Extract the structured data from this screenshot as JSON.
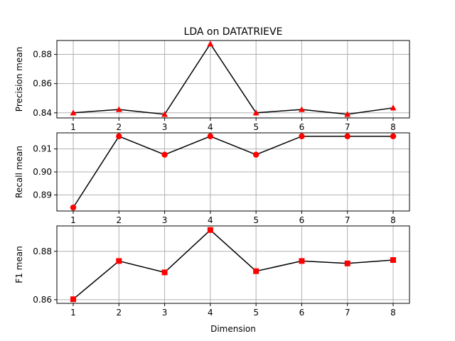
{
  "chart_data": [
    {
      "type": "line",
      "title": "LDA on DATATRIEVE",
      "xlabel": "",
      "ylabel": "Precision mean",
      "x": [
        1,
        2,
        3,
        4,
        5,
        6,
        7,
        8
      ],
      "series": [
        {
          "values": [
            0.84,
            0.8423,
            0.839,
            0.8872,
            0.84,
            0.8423,
            0.839,
            0.8434
          ]
        }
      ],
      "xticks": [
        "1",
        "2",
        "3",
        "4",
        "5",
        "6",
        "7",
        "8"
      ],
      "yticks": [
        0.84,
        0.86,
        0.88
      ],
      "ytick_labels": [
        "0.84",
        "0.86",
        "0.88"
      ],
      "ylim": [
        0.8365,
        0.8895
      ],
      "marker": "triangle",
      "line_color": "#000000",
      "marker_color": "#ff0000",
      "grid": true
    },
    {
      "type": "line",
      "title": "",
      "xlabel": "",
      "ylabel": "Recall mean",
      "x": [
        1,
        2,
        3,
        4,
        5,
        6,
        7,
        8
      ],
      "series": [
        {
          "values": [
            0.8845,
            0.9155,
            0.9075,
            0.9155,
            0.9075,
            0.9155,
            0.9155,
            0.9155
          ]
        }
      ],
      "xticks": [
        "1",
        "2",
        "3",
        "4",
        "5",
        "6",
        "7",
        "8"
      ],
      "yticks": [
        0.89,
        0.9,
        0.91
      ],
      "ytick_labels": [
        "0.89",
        "0.90",
        "0.91"
      ],
      "ylim": [
        0.883,
        0.917
      ],
      "marker": "circle",
      "line_color": "#000000",
      "marker_color": "#ff0000",
      "grid": true
    },
    {
      "type": "line",
      "title": "",
      "xlabel": "Dimension",
      "ylabel": "F1 mean",
      "x": [
        1,
        2,
        3,
        4,
        5,
        6,
        7,
        8
      ],
      "series": [
        {
          "values": [
            0.8602,
            0.876,
            0.8713,
            0.8888,
            0.8718,
            0.876,
            0.875,
            0.8764
          ]
        }
      ],
      "xticks": [
        "1",
        "2",
        "3",
        "4",
        "5",
        "6",
        "7",
        "8"
      ],
      "yticks": [
        0.86,
        0.88
      ],
      "ytick_labels": [
        "0.86",
        "0.88"
      ],
      "ylim": [
        0.8585,
        0.8905
      ],
      "marker": "square",
      "line_color": "#000000",
      "marker_color": "#ff0000",
      "grid": true
    }
  ]
}
